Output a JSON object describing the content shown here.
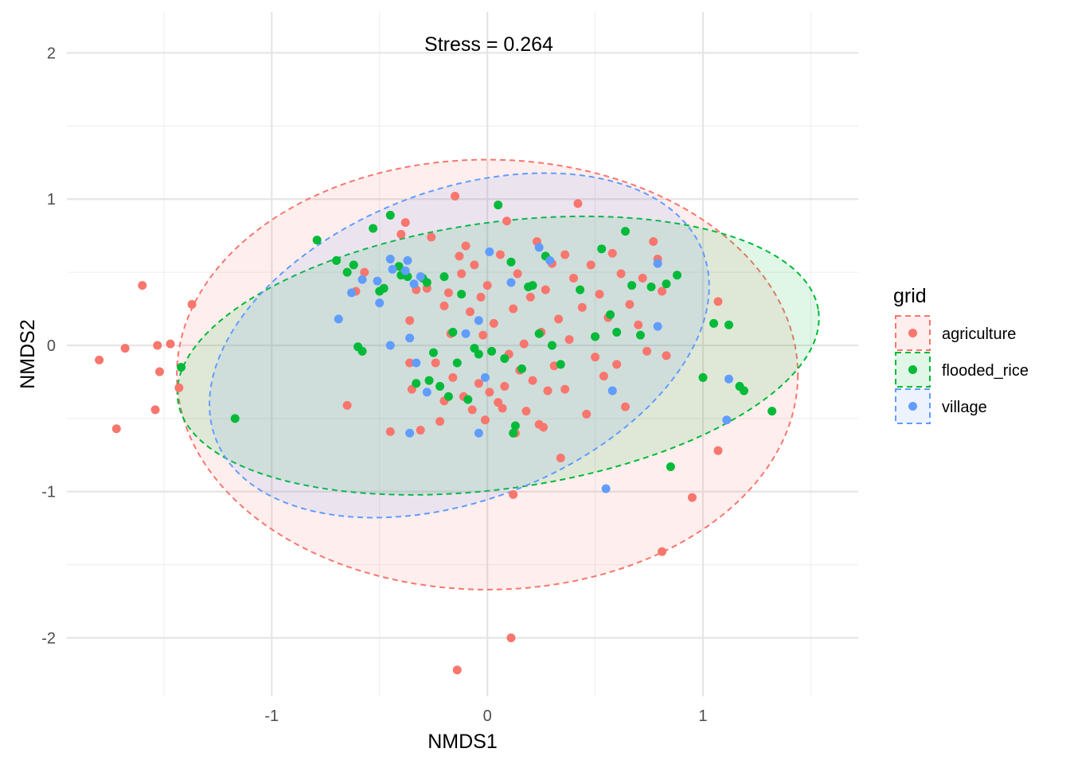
{
  "chart_data": {
    "type": "scatter",
    "title": "",
    "annotation": "Stress = 0.264",
    "xlabel": "NMDS1",
    "ylabel": "NMDS2",
    "xlim": [
      -1.95,
      1.72
    ],
    "ylim": [
      -2.4,
      2.28
    ],
    "x_ticks": [
      -1,
      0,
      1
    ],
    "y_ticks": [
      2,
      1,
      0,
      -1,
      -2
    ],
    "x_tick_labels": [
      "-1",
      "0",
      "1"
    ],
    "y_tick_labels": [
      "2",
      "1",
      "0",
      "-1",
      "-2"
    ],
    "grid": true,
    "legend": {
      "title": "grid",
      "position": "right"
    },
    "series": [
      {
        "name": "agriculture",
        "color": "#F8766D",
        "ellipse": {
          "cx": 0.0,
          "cy": -0.2,
          "rx": 1.44,
          "ry": 1.47,
          "rotation": 0
        },
        "points": [
          [
            -1.8,
            -0.1
          ],
          [
            -1.68,
            -0.02
          ],
          [
            -1.6,
            0.41
          ],
          [
            -1.53,
            0.0
          ],
          [
            -1.52,
            -0.18
          ],
          [
            -1.54,
            -0.44
          ],
          [
            -1.47,
            0.01
          ],
          [
            -1.43,
            -0.29
          ],
          [
            -1.37,
            0.28
          ],
          [
            -1.72,
            -0.57
          ],
          [
            -0.65,
            -0.41
          ],
          [
            -0.61,
            0.37
          ],
          [
            -0.57,
            0.5
          ],
          [
            -0.45,
            -0.59
          ],
          [
            -0.4,
            0.76
          ],
          [
            -0.38,
            0.84
          ],
          [
            -0.36,
            0.17
          ],
          [
            -0.35,
            -0.3
          ],
          [
            -0.33,
            0.38
          ],
          [
            -0.31,
            -0.58
          ],
          [
            -0.28,
            0.39
          ],
          [
            -0.26,
            0.74
          ],
          [
            -0.24,
            -0.12
          ],
          [
            -0.22,
            -0.52
          ],
          [
            -0.2,
            0.27
          ],
          [
            -0.18,
            0.36
          ],
          [
            -0.17,
            0.08
          ],
          [
            -0.16,
            -0.22
          ],
          [
            -0.15,
            1.02
          ],
          [
            -0.13,
            0.61
          ],
          [
            -0.12,
            0.49
          ],
          [
            -0.11,
            -0.35
          ],
          [
            -0.1,
            0.68
          ],
          [
            -0.08,
            0.23
          ],
          [
            -0.07,
            -0.44
          ],
          [
            -0.06,
            0.55
          ],
          [
            -0.04,
            -0.26
          ],
          [
            -0.03,
            0.33
          ],
          [
            -0.02,
            0.07
          ],
          [
            -0.01,
            -0.51
          ],
          [
            0.0,
            0.41
          ],
          [
            0.01,
            -0.32
          ],
          [
            0.03,
            0.15
          ],
          [
            0.05,
            -0.39
          ],
          [
            0.06,
            0.62
          ],
          [
            0.07,
            -0.43
          ],
          [
            0.08,
            -0.28
          ],
          [
            0.09,
            0.85
          ],
          [
            0.1,
            -0.06
          ],
          [
            0.12,
            0.25
          ],
          [
            0.13,
            -0.6
          ],
          [
            0.14,
            0.49
          ],
          [
            0.15,
            -0.17
          ],
          [
            0.17,
            0.01
          ],
          [
            0.18,
            -0.45
          ],
          [
            0.2,
            0.33
          ],
          [
            0.21,
            -0.24
          ],
          [
            0.23,
            0.71
          ],
          [
            0.24,
            -0.54
          ],
          [
            0.25,
            0.09
          ],
          [
            0.27,
            0.38
          ],
          [
            0.28,
            -0.31
          ],
          [
            0.3,
            0.56
          ],
          [
            0.31,
            -0.14
          ],
          [
            0.33,
            0.18
          ],
          [
            0.34,
            -0.77
          ],
          [
            0.36,
            0.62
          ],
          [
            0.38,
            0.04
          ],
          [
            0.4,
            0.46
          ],
          [
            0.42,
            0.97
          ],
          [
            0.44,
            0.26
          ],
          [
            0.46,
            -0.47
          ],
          [
            0.48,
            0.55
          ],
          [
            0.5,
            -0.08
          ],
          [
            0.52,
            0.35
          ],
          [
            0.54,
            -0.21
          ],
          [
            0.56,
            0.19
          ],
          [
            0.58,
            0.63
          ],
          [
            0.6,
            -0.13
          ],
          [
            0.62,
            0.49
          ],
          [
            0.64,
            -0.42
          ],
          [
            0.66,
            0.28
          ],
          [
            0.7,
            0.14
          ],
          [
            0.72,
            0.46
          ],
          [
            0.74,
            -0.04
          ],
          [
            0.77,
            0.71
          ],
          [
            0.79,
            0.59
          ],
          [
            0.81,
            0.37
          ],
          [
            0.83,
            -0.07
          ],
          [
            1.07,
            0.3
          ],
          [
            0.12,
            -1.02
          ],
          [
            0.81,
            -1.41
          ],
          [
            0.95,
            -1.04
          ],
          [
            0.11,
            -2.0
          ],
          [
            -0.14,
            -2.22
          ],
          [
            1.07,
            -0.72
          ],
          [
            0.26,
            -0.56
          ],
          [
            -0.2,
            -0.38
          ],
          [
            0.36,
            -0.3
          ],
          [
            -0.36,
            -0.12
          ]
        ]
      },
      {
        "name": "flooded_rice",
        "color": "#00BA38",
        "ellipse": {
          "cx": 0.05,
          "cy": -0.07,
          "rx": 1.5,
          "ry": 0.91,
          "rotation": -8
        },
        "points": [
          [
            -1.42,
            -0.15
          ],
          [
            -1.17,
            -0.5
          ],
          [
            -0.79,
            0.72
          ],
          [
            -0.7,
            0.58
          ],
          [
            -0.65,
            0.5
          ],
          [
            -0.62,
            0.55
          ],
          [
            -0.6,
            -0.01
          ],
          [
            -0.58,
            -0.04
          ],
          [
            -0.53,
            0.8
          ],
          [
            -0.5,
            0.37
          ],
          [
            -0.48,
            0.39
          ],
          [
            -0.45,
            0.89
          ],
          [
            -0.41,
            0.54
          ],
          [
            -0.4,
            0.48
          ],
          [
            -0.37,
            0.47
          ],
          [
            -0.33,
            -0.26
          ],
          [
            -0.3,
            0.46
          ],
          [
            -0.27,
            -0.24
          ],
          [
            -0.25,
            -0.05
          ],
          [
            -0.22,
            -0.28
          ],
          [
            -0.2,
            0.47
          ],
          [
            -0.18,
            -0.35
          ],
          [
            -0.16,
            0.09
          ],
          [
            -0.14,
            -0.12
          ],
          [
            -0.12,
            0.35
          ],
          [
            -0.09,
            -0.37
          ],
          [
            -0.06,
            -0.02
          ],
          [
            -0.04,
            -0.06
          ],
          [
            0.02,
            -0.04
          ],
          [
            0.05,
            0.96
          ],
          [
            0.08,
            -0.09
          ],
          [
            0.11,
            0.57
          ],
          [
            0.13,
            -0.55
          ],
          [
            0.16,
            -0.16
          ],
          [
            0.19,
            0.4
          ],
          [
            0.21,
            0.41
          ],
          [
            0.24,
            0.08
          ],
          [
            0.27,
            0.61
          ],
          [
            0.3,
            0.0
          ],
          [
            0.34,
            -0.13
          ],
          [
            0.43,
            0.38
          ],
          [
            0.5,
            0.06
          ],
          [
            0.53,
            0.66
          ],
          [
            0.57,
            0.21
          ],
          [
            0.6,
            0.09
          ],
          [
            0.64,
            0.78
          ],
          [
            0.67,
            0.41
          ],
          [
            0.71,
            0.07
          ],
          [
            0.76,
            0.4
          ],
          [
            0.83,
            0.42
          ],
          [
            0.88,
            0.48
          ],
          [
            1.0,
            -0.22
          ],
          [
            1.05,
            0.15
          ],
          [
            1.12,
            0.14
          ],
          [
            1.17,
            -0.28
          ],
          [
            1.19,
            -0.31
          ],
          [
            1.32,
            -0.45
          ],
          [
            0.85,
            -0.83
          ],
          [
            0.12,
            -0.6
          ],
          [
            -0.28,
            0.43
          ]
        ]
      },
      {
        "name": "village",
        "color": "#619CFF",
        "ellipse": {
          "cx": -0.13,
          "cy": 0.0,
          "rx": 1.21,
          "ry": 1.06,
          "rotation": -21
        },
        "points": [
          [
            -0.69,
            0.18
          ],
          [
            -0.63,
            0.36
          ],
          [
            -0.58,
            0.45
          ],
          [
            -0.51,
            0.44
          ],
          [
            -0.5,
            0.29
          ],
          [
            -0.45,
            0.59
          ],
          [
            -0.45,
            0.0
          ],
          [
            -0.44,
            0.52
          ],
          [
            -0.38,
            0.51
          ],
          [
            -0.37,
            0.58
          ],
          [
            -0.36,
            0.05
          ],
          [
            -0.34,
            0.42
          ],
          [
            -0.31,
            0.47
          ],
          [
            -0.1,
            0.08
          ],
          [
            -0.04,
            -0.6
          ],
          [
            -0.04,
            0.17
          ],
          [
            -0.01,
            -0.22
          ],
          [
            0.01,
            0.64
          ],
          [
            0.11,
            0.43
          ],
          [
            0.24,
            0.67
          ],
          [
            0.29,
            0.58
          ],
          [
            0.55,
            -0.98
          ],
          [
            0.58,
            -0.31
          ],
          [
            0.79,
            0.56
          ],
          [
            0.79,
            0.13
          ],
          [
            1.11,
            -0.51
          ],
          [
            1.12,
            -0.23
          ],
          [
            -0.36,
            -0.6
          ],
          [
            -0.33,
            -0.12
          ],
          [
            -0.28,
            -0.32
          ]
        ]
      }
    ]
  }
}
